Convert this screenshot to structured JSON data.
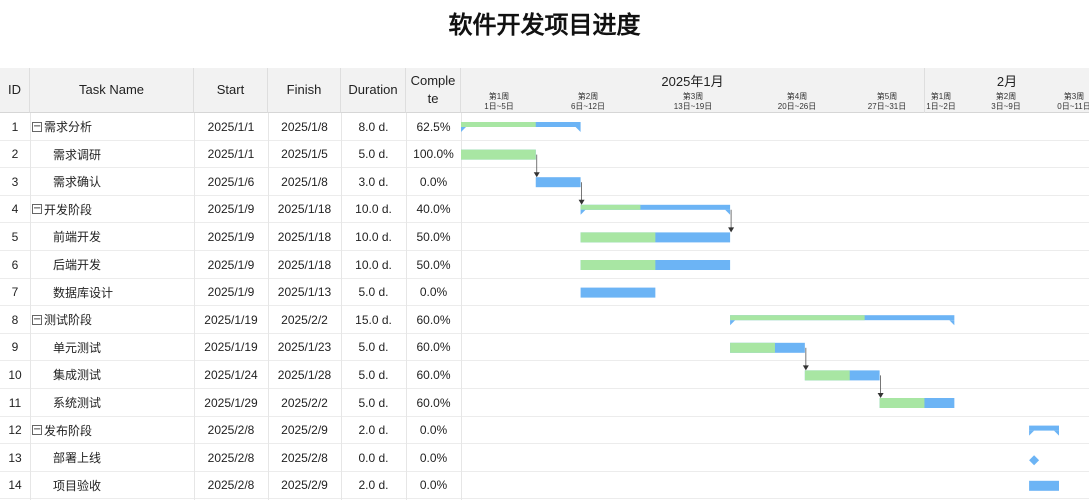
{
  "title": "软件开发项目进度",
  "colors": {
    "done": "#a8e6a3",
    "remaining": "#6cb4f5",
    "header_bg": "#f2f2f2",
    "connector": "#555555"
  },
  "columns": {
    "id": "ID",
    "name": "Task Name",
    "start": "Start",
    "finish": "Finish",
    "duration": "Duration",
    "complete": "Comple te"
  },
  "timeline": {
    "months": [
      "2025年1月",
      "2月"
    ],
    "weeks": [
      {
        "week": "第1周",
        "range": "1日~5日"
      },
      {
        "week": "第2周",
        "range": "6日~12日"
      },
      {
        "week": "第3周",
        "range": "13日~19日"
      },
      {
        "week": "第4周",
        "range": "20日~26日"
      },
      {
        "week": "第5周",
        "range": "27日~31日"
      },
      {
        "week": "第1周",
        "range": "1日~2日"
      },
      {
        "week": "第2周",
        "range": "3日~9日"
      },
      {
        "week": "第3周",
        "range": "0日~11日"
      }
    ]
  },
  "tasks": [
    {
      "id": "1",
      "name": "需求分析",
      "start": "2025/1/1",
      "finish": "2025/1/8",
      "duration": "8.0 d.",
      "complete": "62.5%"
    },
    {
      "id": "2",
      "name": "需求调研",
      "start": "2025/1/1",
      "finish": "2025/1/5",
      "duration": "5.0 d.",
      "complete": "100.0%"
    },
    {
      "id": "3",
      "name": "需求确认",
      "start": "2025/1/6",
      "finish": "2025/1/8",
      "duration": "3.0 d.",
      "complete": "0.0%"
    },
    {
      "id": "4",
      "name": "开发阶段",
      "start": "2025/1/9",
      "finish": "2025/1/18",
      "duration": "10.0 d.",
      "complete": "40.0%"
    },
    {
      "id": "5",
      "name": "前端开发",
      "start": "2025/1/9",
      "finish": "2025/1/18",
      "duration": "10.0 d.",
      "complete": "50.0%"
    },
    {
      "id": "6",
      "name": "后端开发",
      "start": "2025/1/9",
      "finish": "2025/1/18",
      "duration": "10.0 d.",
      "complete": "50.0%"
    },
    {
      "id": "7",
      "name": "数据库设计",
      "start": "2025/1/9",
      "finish": "2025/1/13",
      "duration": "5.0 d.",
      "complete": "0.0%"
    },
    {
      "id": "8",
      "name": "测试阶段",
      "start": "2025/1/19",
      "finish": "2025/2/2",
      "duration": "15.0 d.",
      "complete": "60.0%"
    },
    {
      "id": "9",
      "name": "单元测试",
      "start": "2025/1/19",
      "finish": "2025/1/23",
      "duration": "5.0 d.",
      "complete": "60.0%"
    },
    {
      "id": "10",
      "name": "集成测试",
      "start": "2025/1/24",
      "finish": "2025/1/28",
      "duration": "5.0 d.",
      "complete": "60.0%"
    },
    {
      "id": "11",
      "name": "系统测试",
      "start": "2025/1/29",
      "finish": "2025/2/2",
      "duration": "5.0 d.",
      "complete": "60.0%"
    },
    {
      "id": "12",
      "name": "发布阶段",
      "start": "2025/2/8",
      "finish": "2025/2/9",
      "duration": "2.0 d.",
      "complete": "0.0%"
    },
    {
      "id": "13",
      "name": "部署上线",
      "start": "2025/2/8",
      "finish": "2025/2/8",
      "duration": "0.0 d.",
      "complete": "0.0%"
    },
    {
      "id": "14",
      "name": "项目验收",
      "start": "2025/2/8",
      "finish": "2025/2/9",
      "duration": "2.0 d.",
      "complete": "0.0%"
    }
  ],
  "chart_data": {
    "type": "gantt",
    "title": "软件开发项目进度",
    "x_range": [
      "2025/1/1",
      "2025/2/11"
    ],
    "groups": [
      {
        "id": 1,
        "children": [
          2,
          3
        ]
      },
      {
        "id": 4,
        "children": [
          5,
          6,
          7
        ]
      },
      {
        "id": 8,
        "children": [
          9,
          10,
          11
        ]
      },
      {
        "id": 12,
        "children": [
          13,
          14
        ]
      }
    ],
    "tasks": [
      {
        "id": 1,
        "start": "2025-01-01",
        "finish": "2025-01-08",
        "complete": 62.5,
        "summary": true
      },
      {
        "id": 2,
        "start": "2025-01-01",
        "finish": "2025-01-05",
        "complete": 100.0
      },
      {
        "id": 3,
        "start": "2025-01-06",
        "finish": "2025-01-08",
        "complete": 0.0
      },
      {
        "id": 4,
        "start": "2025-01-09",
        "finish": "2025-01-18",
        "complete": 40.0,
        "summary": true
      },
      {
        "id": 5,
        "start": "2025-01-09",
        "finish": "2025-01-18",
        "complete": 50.0
      },
      {
        "id": 6,
        "start": "2025-01-09",
        "finish": "2025-01-18",
        "complete": 50.0
      },
      {
        "id": 7,
        "start": "2025-01-09",
        "finish": "2025-01-13",
        "complete": 0.0
      },
      {
        "id": 8,
        "start": "2025-01-19",
        "finish": "2025-02-02",
        "complete": 60.0,
        "summary": true
      },
      {
        "id": 9,
        "start": "2025-01-19",
        "finish": "2025-01-23",
        "complete": 60.0
      },
      {
        "id": 10,
        "start": "2025-01-24",
        "finish": "2025-01-28",
        "complete": 60.0
      },
      {
        "id": 11,
        "start": "2025-01-29",
        "finish": "2025-02-02",
        "complete": 60.0
      },
      {
        "id": 12,
        "start": "2025-02-08",
        "finish": "2025-02-09",
        "complete": 0.0,
        "summary": true
      },
      {
        "id": 13,
        "start": "2025-02-08",
        "finish": "2025-02-08",
        "complete": 0.0,
        "milestone": true
      },
      {
        "id": 14,
        "start": "2025-02-08",
        "finish": "2025-02-09",
        "complete": 0.0
      }
    ],
    "dependencies": [
      [
        2,
        3
      ],
      [
        3,
        4
      ],
      [
        4,
        5
      ],
      [
        9,
        10
      ],
      [
        10,
        11
      ]
    ]
  }
}
